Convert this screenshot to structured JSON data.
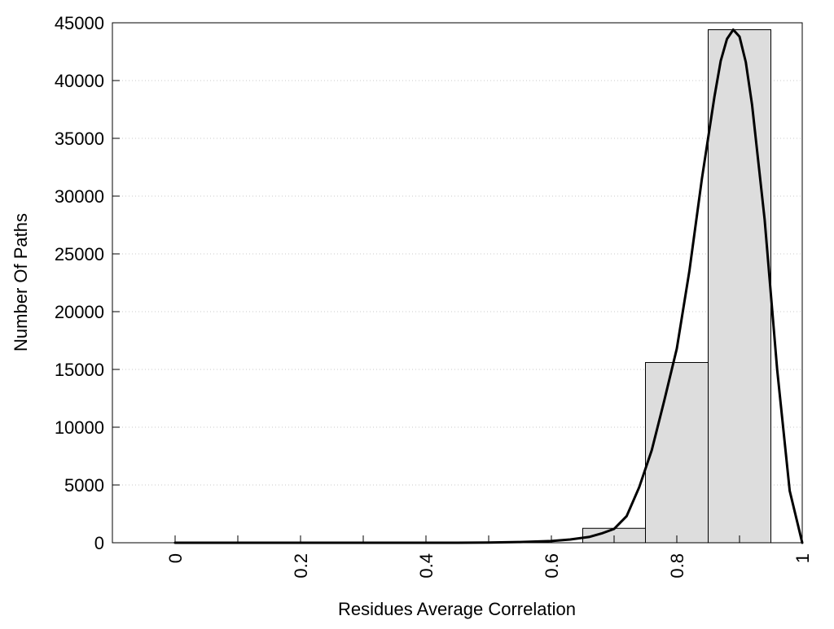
{
  "colors": {
    "bar_fill": "#dddddd",
    "bar_stroke": "#000000",
    "curve": "#000000",
    "grid": "#c8c8c8",
    "frame": "#000000",
    "background": "#ffffff"
  },
  "chart_data": {
    "type": "bar",
    "xlabel": "Residues Average Correlation",
    "ylabel": "Number Of Paths",
    "xlim": [
      -0.1,
      1.0
    ],
    "ylim": [
      0,
      45000
    ],
    "grid": "horizontal dotted",
    "x_ticks": [
      0,
      0.2,
      0.4,
      0.6,
      0.8,
      1
    ],
    "x_tick_labels": [
      "0",
      "0.2",
      "0.4",
      "0.6",
      "0.8",
      "1"
    ],
    "x_minor_ticks": [
      0.1,
      0.3,
      0.5,
      0.7,
      0.9
    ],
    "y_ticks": [
      0,
      5000,
      10000,
      15000,
      20000,
      25000,
      30000,
      35000,
      40000,
      45000
    ],
    "y_tick_labels": [
      "0",
      "5000",
      "10000",
      "15000",
      "20000",
      "25000",
      "30000",
      "35000",
      "40000",
      "45000"
    ],
    "bins": [
      {
        "x0": 0.65,
        "x1": 0.75,
        "value": 1250
      },
      {
        "x0": 0.75,
        "x1": 0.85,
        "value": 15600
      },
      {
        "x0": 0.85,
        "x1": 0.95,
        "value": 44400
      }
    ],
    "fit_curve": {
      "points": [
        [
          0.0,
          0
        ],
        [
          0.1,
          0
        ],
        [
          0.2,
          0
        ],
        [
          0.3,
          0
        ],
        [
          0.4,
          0
        ],
        [
          0.45,
          0
        ],
        [
          0.5,
          20
        ],
        [
          0.55,
          60
        ],
        [
          0.6,
          150
        ],
        [
          0.63,
          280
        ],
        [
          0.66,
          500
        ],
        [
          0.68,
          800
        ],
        [
          0.7,
          1200
        ],
        [
          0.72,
          2300
        ],
        [
          0.74,
          4800
        ],
        [
          0.76,
          8000
        ],
        [
          0.78,
          12300
        ],
        [
          0.8,
          16800
        ],
        [
          0.82,
          23500
        ],
        [
          0.84,
          31500
        ],
        [
          0.86,
          38600
        ],
        [
          0.87,
          41700
        ],
        [
          0.88,
          43600
        ],
        [
          0.89,
          44400
        ],
        [
          0.9,
          43800
        ],
        [
          0.91,
          41600
        ],
        [
          0.92,
          37900
        ],
        [
          0.94,
          28000
        ],
        [
          0.96,
          15000
        ],
        [
          0.98,
          4500
        ],
        [
          1.0,
          0
        ]
      ]
    }
  }
}
